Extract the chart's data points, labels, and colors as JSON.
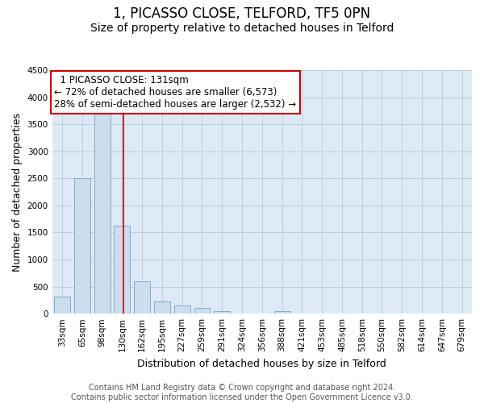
{
  "title": "1, PICASSO CLOSE, TELFORD, TF5 0PN",
  "subtitle": "Size of property relative to detached houses in Telford",
  "xlabel": "Distribution of detached houses by size in Telford",
  "ylabel": "Number of detached properties",
  "categories": [
    "33sqm",
    "65sqm",
    "98sqm",
    "130sqm",
    "162sqm",
    "195sqm",
    "227sqm",
    "259sqm",
    "291sqm",
    "324sqm",
    "356sqm",
    "388sqm",
    "421sqm",
    "453sqm",
    "485sqm",
    "518sqm",
    "550sqm",
    "582sqm",
    "614sqm",
    "647sqm",
    "679sqm"
  ],
  "values": [
    310,
    2500,
    3700,
    1625,
    600,
    225,
    150,
    100,
    50,
    0,
    0,
    50,
    0,
    0,
    0,
    0,
    0,
    0,
    0,
    0,
    0
  ],
  "bar_color": "#ccdded",
  "bar_edge_color": "#7ab0cc",
  "ylim": [
    0,
    4500
  ],
  "yticks": [
    0,
    500,
    1000,
    1500,
    2000,
    2500,
    3000,
    3500,
    4000,
    4500
  ],
  "property_label": "1 PICASSO CLOSE: 131sqm",
  "pct_smaller": 72,
  "count_smaller": 6573,
  "pct_larger": 28,
  "count_larger": 2532,
  "vline_color": "#cc0000",
  "vline_position": 3.08,
  "annotation_box_edge": "#cc0000",
  "footer_line1": "Contains HM Land Registry data © Crown copyright and database right 2024.",
  "footer_line2": "Contains public sector information licensed under the Open Government Licence v3.0.",
  "grid_color": "#b8cfe0",
  "bg_color": "#ddeaf5",
  "title_fontsize": 12,
  "subtitle_fontsize": 10,
  "axis_label_fontsize": 9,
  "tick_fontsize": 7.5,
  "annotation_fontsize": 8.5,
  "footer_fontsize": 7
}
